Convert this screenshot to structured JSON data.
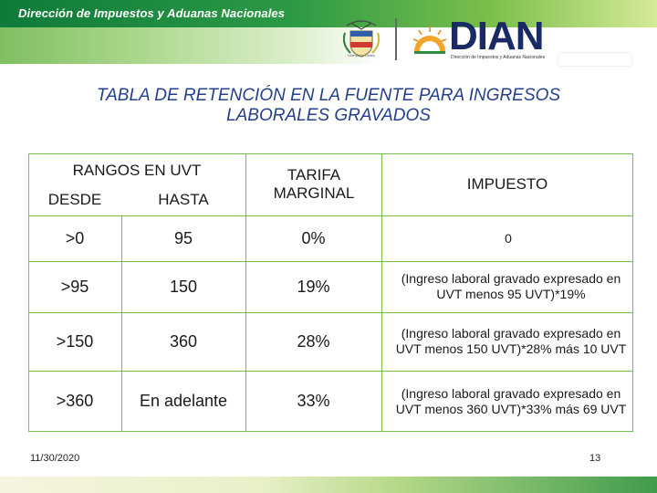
{
  "header": {
    "org_name": "Dirección de Impuestos y Aduanas Nacionales",
    "coat_caption": "Libertad y Orden",
    "dian_logo": "DIAN",
    "dian_subtitle": "Dirección de Impuestos y Aduanas Nacionales",
    "colors": {
      "green_dark": "#0f7a3a",
      "green_light": "#7cc04b",
      "navy": "#1a2a64"
    }
  },
  "title": "TABLA DE RETENCIÓN EN LA FUENTE PARA INGRESOS LABORALES GRAVADOS",
  "table": {
    "header": {
      "ranges": "RANGOS EN UVT",
      "from": "DESDE",
      "to": "HASTA",
      "rate": "TARIFA MARGINAL",
      "tax": "IMPUESTO"
    },
    "rows": [
      {
        "from": ">0",
        "to": "95",
        "rate": "0%",
        "tax": "0"
      },
      {
        "from": ">95",
        "to": "150",
        "rate": "19%",
        "tax": "(Ingreso laboral gravado expresado en UVT menos 95 UVT)*19%"
      },
      {
        "from": ">150",
        "to": "360",
        "rate": "28%",
        "tax": "(Ingreso laboral gravado expresado en UVT menos 150 UVT)*28% más 10 UVT"
      },
      {
        "from": ">360",
        "to": "En adelante",
        "rate": "33%",
        "tax": "(Ingreso laboral gravado expresado en UVT menos 360 UVT)*33% más 69 UVT"
      }
    ],
    "border_color": "#79c04a"
  },
  "footer": {
    "date": "11/30/2020",
    "page": "13"
  }
}
